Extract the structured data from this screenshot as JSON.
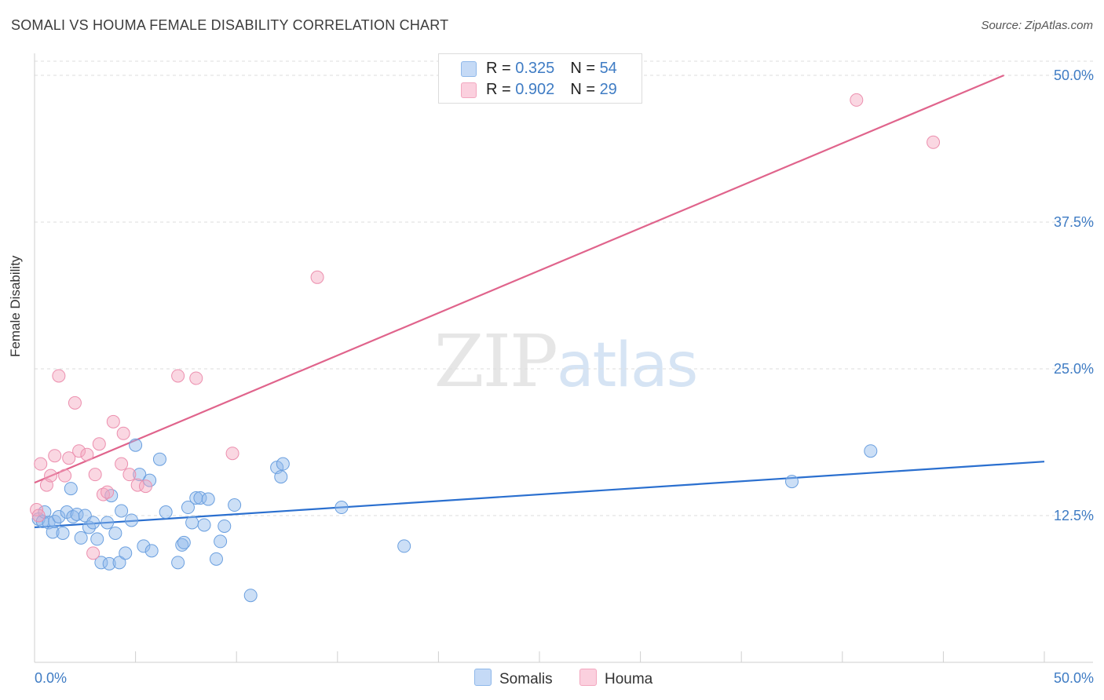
{
  "chart_data": {
    "type": "scatter",
    "title": "SOMALI VS HOUMA FEMALE DISABILITY CORRELATION CHART",
    "source": "Source: ZipAtlas.com",
    "xlabel": "",
    "ylabel": "Female Disability",
    "xlim": [
      0,
      50
    ],
    "ylim": [
      0,
      50
    ],
    "x_tick_labels": [
      "0.0%",
      "50.0%"
    ],
    "y_tick_values": [
      12.5,
      25.0,
      37.5,
      50.0
    ],
    "y_tick_labels": [
      "12.5%",
      "25.0%",
      "37.5%",
      "50.0%"
    ],
    "grid": true,
    "watermark": "ZIPatlas",
    "colors": {
      "somalis": "#8fb8ea",
      "somalis_line": "#2a6fcf",
      "houma": "#f3a7bf",
      "houma_line": "#e0648c",
      "tick": "#3f7cc4"
    },
    "legend": {
      "r_label": "R =",
      "n_label": "N =",
      "entries": [
        {
          "series": "Somalis",
          "r": "0.325",
          "n": "54"
        },
        {
          "series": "Houma",
          "r": "0.902",
          "n": "29"
        }
      ]
    },
    "series": [
      {
        "name": "Somalis",
        "trend": {
          "x": [
            0,
            50
          ],
          "y": [
            11.5,
            17.1
          ]
        },
        "points": [
          [
            0.2,
            12.2
          ],
          [
            0.4,
            12.0
          ],
          [
            0.5,
            12.8
          ],
          [
            0.7,
            11.9
          ],
          [
            0.9,
            11.1
          ],
          [
            1.0,
            12.0
          ],
          [
            1.2,
            12.4
          ],
          [
            1.4,
            11.0
          ],
          [
            1.6,
            12.8
          ],
          [
            1.8,
            14.8
          ],
          [
            1.9,
            12.4
          ],
          [
            2.1,
            12.6
          ],
          [
            2.3,
            10.6
          ],
          [
            2.5,
            12.5
          ],
          [
            2.7,
            11.5
          ],
          [
            2.9,
            11.9
          ],
          [
            3.1,
            10.5
          ],
          [
            3.3,
            8.5
          ],
          [
            3.6,
            11.9
          ],
          [
            3.7,
            8.4
          ],
          [
            3.8,
            14.2
          ],
          [
            4.0,
            11.0
          ],
          [
            4.2,
            8.5
          ],
          [
            4.3,
            12.9
          ],
          [
            4.5,
            9.3
          ],
          [
            4.8,
            12.1
          ],
          [
            5.0,
            18.5
          ],
          [
            5.2,
            16.0
          ],
          [
            5.4,
            9.9
          ],
          [
            5.7,
            15.5
          ],
          [
            5.8,
            9.5
          ],
          [
            6.2,
            17.3
          ],
          [
            6.5,
            12.8
          ],
          [
            7.1,
            8.5
          ],
          [
            7.3,
            10.0
          ],
          [
            7.4,
            10.2
          ],
          [
            7.6,
            13.2
          ],
          [
            7.8,
            11.9
          ],
          [
            8.0,
            14.0
          ],
          [
            8.2,
            14.0
          ],
          [
            8.4,
            11.7
          ],
          [
            8.6,
            13.9
          ],
          [
            9.0,
            8.8
          ],
          [
            9.2,
            10.3
          ],
          [
            9.4,
            11.6
          ],
          [
            9.9,
            13.4
          ],
          [
            10.7,
            5.7
          ],
          [
            12.0,
            16.6
          ],
          [
            12.2,
            15.8
          ],
          [
            12.3,
            16.9
          ],
          [
            15.2,
            13.2
          ],
          [
            18.3,
            9.9
          ],
          [
            37.5,
            15.4
          ],
          [
            41.4,
            18.0
          ]
        ]
      },
      {
        "name": "Houma",
        "trend": {
          "x": [
            0,
            48
          ],
          "y": [
            15.3,
            50.0
          ]
        },
        "points": [
          [
            0.1,
            13.0
          ],
          [
            0.3,
            16.9
          ],
          [
            0.6,
            15.1
          ],
          [
            0.8,
            15.9
          ],
          [
            1.0,
            17.6
          ],
          [
            1.2,
            24.4
          ],
          [
            1.5,
            15.9
          ],
          [
            1.7,
            17.4
          ],
          [
            2.0,
            22.1
          ],
          [
            2.2,
            18.0
          ],
          [
            2.6,
            17.7
          ],
          [
            3.0,
            16.0
          ],
          [
            3.2,
            18.6
          ],
          [
            3.4,
            14.3
          ],
          [
            3.6,
            14.5
          ],
          [
            3.9,
            20.5
          ],
          [
            4.3,
            16.9
          ],
          [
            4.4,
            19.5
          ],
          [
            4.7,
            16.0
          ],
          [
            5.1,
            15.1
          ],
          [
            5.5,
            15.0
          ],
          [
            7.1,
            24.4
          ],
          [
            8.0,
            24.2
          ],
          [
            9.8,
            17.8
          ],
          [
            14.0,
            32.8
          ],
          [
            40.7,
            47.9
          ],
          [
            44.5,
            44.3
          ],
          [
            2.9,
            9.3
          ],
          [
            0.2,
            12.5
          ]
        ]
      }
    ],
    "bottom_legend": [
      "Somalis",
      "Houma"
    ]
  }
}
